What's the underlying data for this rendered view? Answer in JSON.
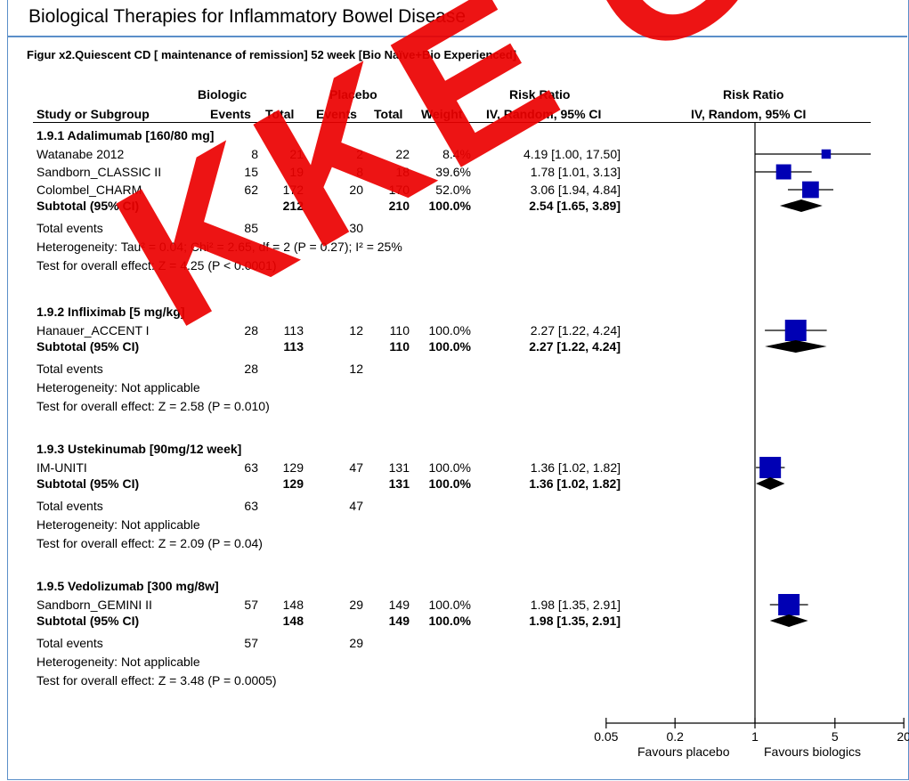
{
  "page_title": "Biological Therapies for Inflammatory Bowel Disease",
  "figure_title": "Figur x2.Quiescent CD [ maintenance of remission] 52 week [Bio Naïve+Bio Experienced]",
  "watermark": "KKE GAMLE",
  "headers": {
    "biologic": "Biologic",
    "placebo": "Placebo",
    "risk_ratio_left": "Risk Ratio",
    "risk_ratio_right": "Risk Ratio",
    "study": "Study or Subgroup",
    "events1": "Events",
    "total1": "Total",
    "events2": "Events",
    "total2": "Total",
    "weight": "Weight",
    "method_left": "IV, Random, 95% CI",
    "method_right": "IV, Random, 95% CI"
  },
  "chart_data": {
    "type": "forest",
    "x_scale": "log",
    "xlim": [
      0.05,
      20
    ],
    "x_ticks": [
      "0.05",
      "0.2",
      "1",
      "5",
      "20"
    ],
    "x_label_left": "Favours placebo",
    "x_label_right": "Favours biologics",
    "groups": [
      {
        "name": "1.9.1 Adalimumab [160/80 mg]",
        "studies": [
          {
            "name": "Watanabe 2012",
            "e1": "8",
            "n1": "21",
            "e2": "2",
            "n2": "22",
            "weight": "8.4%",
            "ci_text": "4.19 [1.00, 17.50]",
            "rr": 4.19,
            "lo": 1.0,
            "hi": 17.5,
            "w": 8.4
          },
          {
            "name": "Sandborn_CLASSIC II",
            "e1": "15",
            "n1": "19",
            "e2": "8",
            "n2": "18",
            "weight": "39.6%",
            "ci_text": "1.78 [1.01, 3.13]",
            "rr": 1.78,
            "lo": 1.01,
            "hi": 3.13,
            "w": 39.6
          },
          {
            "name": "Colombel_CHARM",
            "e1": "62",
            "n1": "172",
            "e2": "20",
            "n2": "170",
            "weight": "52.0%",
            "ci_text": "3.06 [1.94, 4.84]",
            "rr": 3.06,
            "lo": 1.94,
            "hi": 4.84,
            "w": 52.0
          }
        ],
        "subtotal": {
          "label": "Subtotal (95% CI)",
          "n1": "212",
          "n2": "210",
          "weight": "100.0%",
          "ci_text": "2.54 [1.65, 3.89]",
          "rr": 2.54,
          "lo": 1.65,
          "hi": 3.89
        },
        "total_events": {
          "label": "Total events",
          "e1": "85",
          "e2": "30"
        },
        "heterogeneity": "Heterogeneity: Tau² = 0.04; Chi² = 2.65, df = 2 (P = 0.27); I² = 25%",
        "overall": "Test for overall effect: Z = 4.25 (P < 0.0001)"
      },
      {
        "name": "1.9.2 Infliximab [5 mg/kg]",
        "studies": [
          {
            "name": "Hanauer_ACCENT I",
            "e1": "28",
            "n1": "113",
            "e2": "12",
            "n2": "110",
            "weight": "100.0%",
            "ci_text": "2.27 [1.22, 4.24]",
            "rr": 2.27,
            "lo": 1.22,
            "hi": 4.24,
            "w": 100.0
          }
        ],
        "subtotal": {
          "label": "Subtotal (95% CI)",
          "n1": "113",
          "n2": "110",
          "weight": "100.0%",
          "ci_text": "2.27 [1.22, 4.24]",
          "rr": 2.27,
          "lo": 1.22,
          "hi": 4.24
        },
        "total_events": {
          "label": "Total events",
          "e1": "28",
          "e2": "12"
        },
        "heterogeneity": "Heterogeneity: Not applicable",
        "overall": "Test for overall effect: Z = 2.58 (P = 0.010)"
      },
      {
        "name": "1.9.3 Ustekinumab [90mg/12 week]",
        "studies": [
          {
            "name": "IM-UNITI",
            "e1": "63",
            "n1": "129",
            "e2": "47",
            "n2": "131",
            "weight": "100.0%",
            "ci_text": "1.36 [1.02, 1.82]",
            "rr": 1.36,
            "lo": 1.02,
            "hi": 1.82,
            "w": 100.0
          }
        ],
        "subtotal": {
          "label": "Subtotal (95% CI)",
          "n1": "129",
          "n2": "131",
          "weight": "100.0%",
          "ci_text": "1.36 [1.02, 1.82]",
          "rr": 1.36,
          "lo": 1.02,
          "hi": 1.82
        },
        "total_events": {
          "label": "Total events",
          "e1": "63",
          "e2": "47"
        },
        "heterogeneity": "Heterogeneity: Not applicable",
        "overall": "Test for overall effect: Z = 2.09 (P = 0.04)"
      },
      {
        "name": "1.9.5 Vedolizumab [300 mg/8w]",
        "studies": [
          {
            "name": "Sandborn_GEMINI II",
            "e1": "57",
            "n1": "148",
            "e2": "29",
            "n2": "149",
            "weight": "100.0%",
            "ci_text": "1.98 [1.35, 2.91]",
            "rr": 1.98,
            "lo": 1.35,
            "hi": 2.91,
            "w": 100.0
          }
        ],
        "subtotal": {
          "label": "Subtotal (95% CI)",
          "n1": "148",
          "n2": "149",
          "weight": "100.0%",
          "ci_text": "1.98 [1.35, 2.91]",
          "rr": 1.98,
          "lo": 1.35,
          "hi": 2.91
        },
        "total_events": {
          "label": "Total events",
          "e1": "57",
          "e2": "29"
        },
        "heterogeneity": "Heterogeneity: Not applicable",
        "overall": "Test for overall effect: Z = 3.48 (P = 0.0005)"
      }
    ],
    "colors": {
      "square": "#0000b4",
      "diamond": "#000000",
      "frame": "#5b8fc9",
      "watermark": "#eb0000"
    }
  }
}
